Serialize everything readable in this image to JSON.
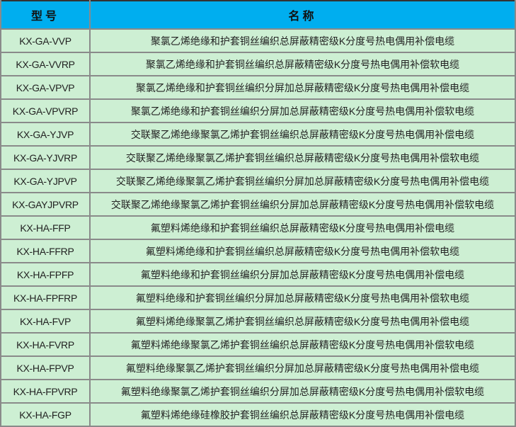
{
  "table": {
    "headers": [
      "型号",
      "名称"
    ],
    "rows": [
      {
        "model": "KX-GA-VVP",
        "name": "聚氯乙烯绝缘和护套铜丝编织总屏蔽精密级K分度号热电偶用补偿电缆"
      },
      {
        "model": "KX-GA-VVRP",
        "name": "聚氯乙烯绝缘和护套铜丝编织总屏蔽精密级K分度号热电偶用补偿软电缆"
      },
      {
        "model": "KX-GA-VPVP",
        "name": "聚氯乙烯绝缘和护套铜丝编织分屏加总屏蔽精密级K分度号热电偶用补偿电缆"
      },
      {
        "model": "KX-GA-VPVRP",
        "name": "聚氯乙烯绝缘和护套铜丝编织分屏加总屏蔽精密级K分度号热电偶用补偿软电缆"
      },
      {
        "model": "KX-GA-YJVP",
        "name": "交联聚乙烯绝缘聚氯乙烯护套铜丝编织总屏蔽精密级K分度号热电偶用补偿电缆"
      },
      {
        "model": "KX-GA-YJVRP",
        "name": "交联聚乙烯绝缘聚氯乙烯护套铜丝编织总屏蔽精密级K分度号热电偶用补偿软电缆"
      },
      {
        "model": "KX-GA-YJPVP",
        "name": "交联聚乙烯绝缘聚氯乙烯护套铜丝编织分屏加总屏蔽精密级K分度号热电偶用补偿电缆"
      },
      {
        "model": "KX-GAYJPVRP",
        "name": "交联聚乙烯绝缘聚氯乙烯护套铜丝编织分屏加总屏蔽精密级K分度号热电偶用补偿软电缆"
      },
      {
        "model": "KX-HA-FFP",
        "name": "氟塑料烯绝缘和护套铜丝编织总屏蔽精密级K分度号热电偶用补偿电缆"
      },
      {
        "model": "KX-HA-FFRP",
        "name": "氟塑料烯绝缘和护套铜丝编织总屏蔽精密级K分度号热电偶用补偿软电缆"
      },
      {
        "model": "KX-HA-FPFP",
        "name": "氟塑料绝缘和护套铜丝编织分屏加总屏蔽精密级K分度号热电偶用补偿电缆"
      },
      {
        "model": "KX-HA-FPFRP",
        "name": "氟塑料绝缘和护套铜丝编织分屏加总屏蔽精密级K分度号热电偶用补偿软电缆"
      },
      {
        "model": "KX-HA-FVP",
        "name": "氟塑料烯绝缘聚氯乙烯护套铜丝编织总屏蔽精密级K分度号热电偶用补偿电缆"
      },
      {
        "model": "KX-HA-FVRP",
        "name": "氟塑料烯绝缘聚氯乙烯护套铜丝编织总屏蔽精密级K分度号热电偶用补偿软电缆"
      },
      {
        "model": "KX-HA-FPVP",
        "name": "氟塑料绝缘聚氯乙烯护套铜丝编织分屏加总屏蔽精密级K分度号热电偶用补偿电缆"
      },
      {
        "model": "KX-HA-FPVRP",
        "name": "氟塑料绝缘聚氯乙烯护套铜丝编织分屏加总屏蔽精密级K分度号热电偶用补偿软电缆"
      },
      {
        "model": "KX-HA-FGP",
        "name": "氟塑料烯绝缘硅橡胶护套铜丝编织总屏蔽精密级K分度号热电偶用补偿电缆"
      }
    ]
  },
  "colors": {
    "header_bg": "#00aeef",
    "row_bg": "#cdefd3",
    "border": "#8a8a8a"
  }
}
